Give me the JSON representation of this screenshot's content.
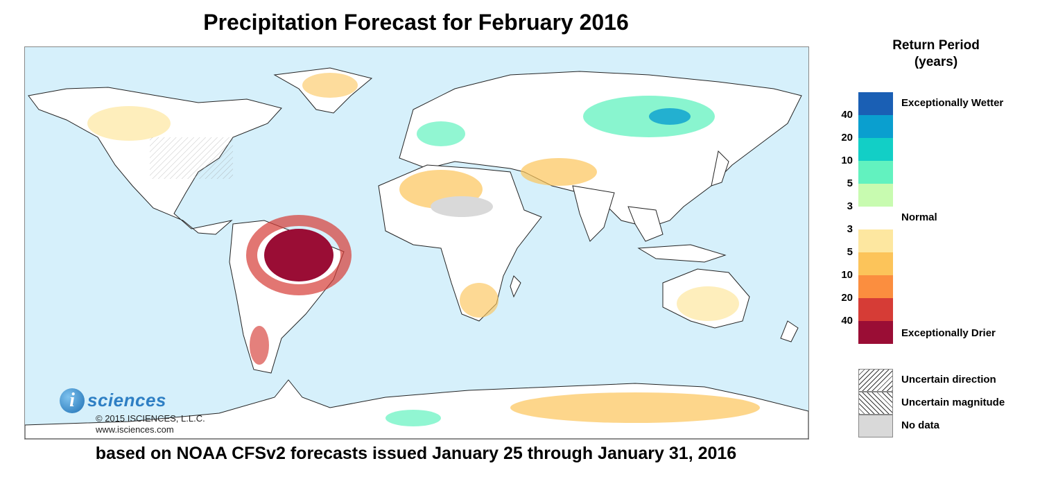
{
  "title": "Precipitation Forecast for February 2016",
  "subtitle": "based on NOAA CFSv2 forecasts issued January 25 through January 31, 2016",
  "branding": {
    "logo_letter": "i",
    "logo_word": "sciences",
    "copyright": "© 2015 ISCIENCES, L.L.C.",
    "website": "www.isciences.com"
  },
  "legend": {
    "title_line1": "Return Period",
    "title_line2": "(years)",
    "colors": [
      "#1a5fb4",
      "#0a9fcf",
      "#12cfc6",
      "#62f2bf",
      "#c8fbb0",
      "#ffffff",
      "#fde7a0",
      "#fcc45a",
      "#fb8e3f",
      "#d63c36",
      "#9a0d35"
    ],
    "ticks": [
      "40",
      "20",
      "10",
      "5",
      "3",
      "3",
      "5",
      "10",
      "20",
      "40"
    ],
    "labels": {
      "wetter": "Exceptionally Wetter",
      "normal": "Normal",
      "drier": "Exceptionally Drier"
    },
    "patterns": {
      "direction": "Uncertain direction",
      "magnitude": "Uncertain magnitude",
      "no_data": "No data"
    }
  }
}
